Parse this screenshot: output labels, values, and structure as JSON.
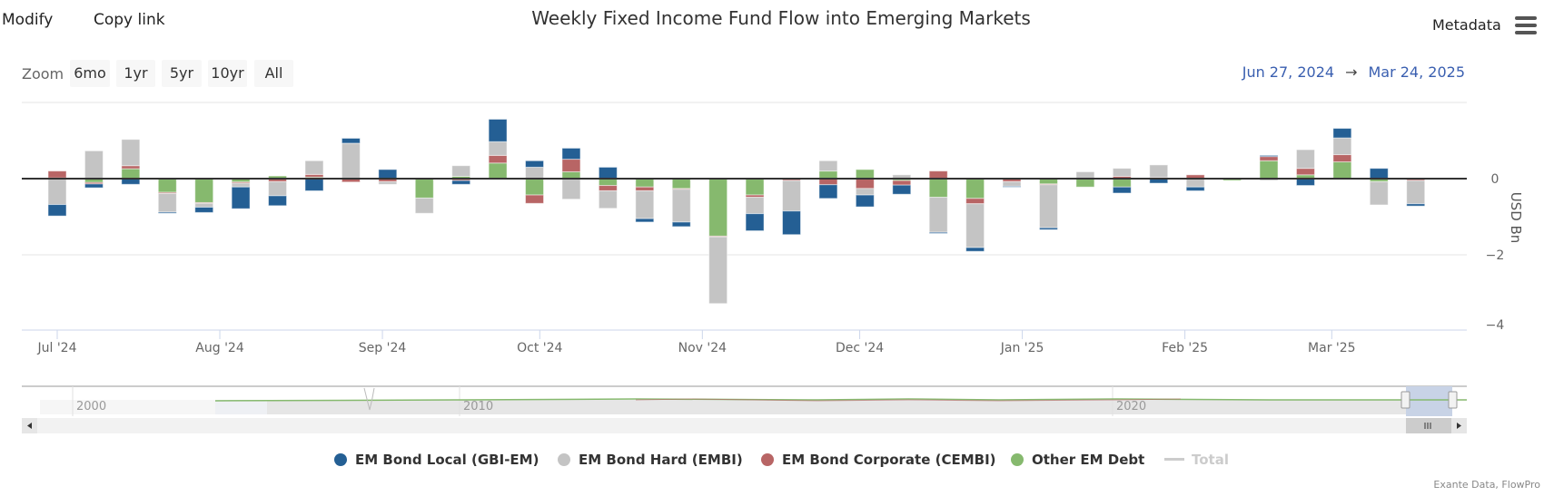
{
  "toolbar": {
    "modify": "Modify",
    "copy_link": "Copy link",
    "metadata": "Metadata",
    "menu_icon": "hamburger-icon"
  },
  "range_selector": {
    "label": "Zoom",
    "buttons": [
      "6mo",
      "1yr",
      "5yr",
      "10yr",
      "All"
    ],
    "from": "Jun 27, 2024",
    "arrow": "→",
    "to": "Mar 24, 2025"
  },
  "navigator": {
    "year_labels": [
      "2000",
      "2010",
      "2020"
    ]
  },
  "credit": "Exante Data, FlowPro",
  "chart_data": {
    "type": "bar",
    "stacked": true,
    "title": "Weekly Fixed Income Fund Flow into Emerging Markets",
    "ylabel": "USD Bn",
    "ylim": [
      -4,
      2
    ],
    "y_ticks": [
      {
        "v": 0,
        "label": "0"
      },
      {
        "v": -2,
        "label": "-2"
      },
      {
        "v": -4,
        "label": "-4"
      }
    ],
    "x_ticks": [
      {
        "date": "2024-07-01",
        "label": "Jul '24"
      },
      {
        "date": "2024-08-01",
        "label": "Aug '24"
      },
      {
        "date": "2024-09-01",
        "label": "Sep '24"
      },
      {
        "date": "2024-10-01",
        "label": "Oct '24"
      },
      {
        "date": "2024-11-01",
        "label": "Nov '24"
      },
      {
        "date": "2024-12-01",
        "label": "Dec '24"
      },
      {
        "date": "2025-01-01",
        "label": "Jan '25"
      },
      {
        "date": "2025-02-01",
        "label": "Feb '25"
      },
      {
        "date": "2025-03-01",
        "label": "Mar '25"
      }
    ],
    "grid": true,
    "legend_position": "bottom",
    "x": [
      "2024-07-01",
      "2024-07-08",
      "2024-07-15",
      "2024-07-22",
      "2024-07-29",
      "2024-08-05",
      "2024-08-12",
      "2024-08-19",
      "2024-08-26",
      "2024-09-02",
      "2024-09-09",
      "2024-09-16",
      "2024-09-23",
      "2024-09-30",
      "2024-10-07",
      "2024-10-14",
      "2024-10-21",
      "2024-10-28",
      "2024-11-04",
      "2024-11-11",
      "2024-11-18",
      "2024-11-25",
      "2024-12-02",
      "2024-12-09",
      "2024-12-16",
      "2024-12-23",
      "2024-12-30",
      "2025-01-06",
      "2025-01-13",
      "2025-01-20",
      "2025-01-27",
      "2025-02-03",
      "2025-02-10",
      "2025-02-17",
      "2025-02-24",
      "2025-03-03",
      "2025-03-10",
      "2025-03-17"
    ],
    "series": [
      {
        "name": "EM Bond Local (GBI-EM)",
        "color": "#245f94",
        "values": [
          -0.3,
          -0.1,
          -0.15,
          -0.03,
          -0.14,
          -0.57,
          -0.26,
          -0.32,
          0.13,
          0.24,
          0,
          -0.1,
          0.59,
          0.17,
          0.29,
          0.3,
          -0.09,
          -0.12,
          0,
          -0.45,
          -0.62,
          -0.36,
          -0.31,
          -0.24,
          -0.03,
          -0.1,
          -0.02,
          -0.05,
          0,
          -0.16,
          -0.12,
          -0.1,
          0,
          0.03,
          -0.18,
          0.25,
          0.27,
          -0.06
        ]
      },
      {
        "name": "EM Bond Hard (EMBI)",
        "color": "#c4c4c4",
        "values": [
          -0.68,
          0.73,
          0.69,
          -0.49,
          -0.1,
          -0.1,
          -0.37,
          0.36,
          0.93,
          -0.07,
          -0.4,
          0.28,
          0.36,
          0.3,
          -0.54,
          -0.46,
          -0.73,
          -0.86,
          -1.75,
          -0.43,
          -0.8,
          0.27,
          -0.17,
          0.1,
          -0.92,
          -1.15,
          -0.12,
          -1.13,
          0.18,
          0.21,
          0.33,
          -0.22,
          0,
          -0.05,
          0.49,
          0.44,
          -0.61,
          -0.61
        ]
      },
      {
        "name": "EM Bond Corporate (CEMBI)",
        "color": "#b86565",
        "values": [
          0.18,
          -0.04,
          0.08,
          -0.03,
          -0.02,
          -0.03,
          -0.08,
          0.07,
          -0.09,
          -0.08,
          0,
          -0.05,
          0.2,
          -0.22,
          0.33,
          -0.14,
          -0.1,
          -0.02,
          -0.02,
          -0.06,
          -0.05,
          -0.16,
          -0.26,
          -0.12,
          0.2,
          -0.14,
          -0.08,
          -0.02,
          0,
          0.06,
          0.03,
          0.1,
          0.02,
          0.11,
          0.17,
          0.19,
          0,
          -0.05
        ]
      },
      {
        "name": "Other EM Debt",
        "color": "#86b96e",
        "values": [
          0.02,
          -0.1,
          0.26,
          -0.36,
          -0.63,
          -0.09,
          0.07,
          0.04,
          0,
          0,
          -0.51,
          0.06,
          0.41,
          -0.43,
          0.18,
          -0.18,
          -0.22,
          -0.26,
          -1.51,
          -0.43,
          0,
          0.2,
          0.24,
          -0.05,
          -0.49,
          -0.52,
          0,
          -0.14,
          -0.22,
          -0.22,
          0,
          0,
          -0.05,
          0.47,
          0.1,
          0.44,
          -0.08,
          0.02
        ]
      },
      {
        "name": "Total",
        "color": "#cccccc",
        "hidden": true
      }
    ]
  }
}
